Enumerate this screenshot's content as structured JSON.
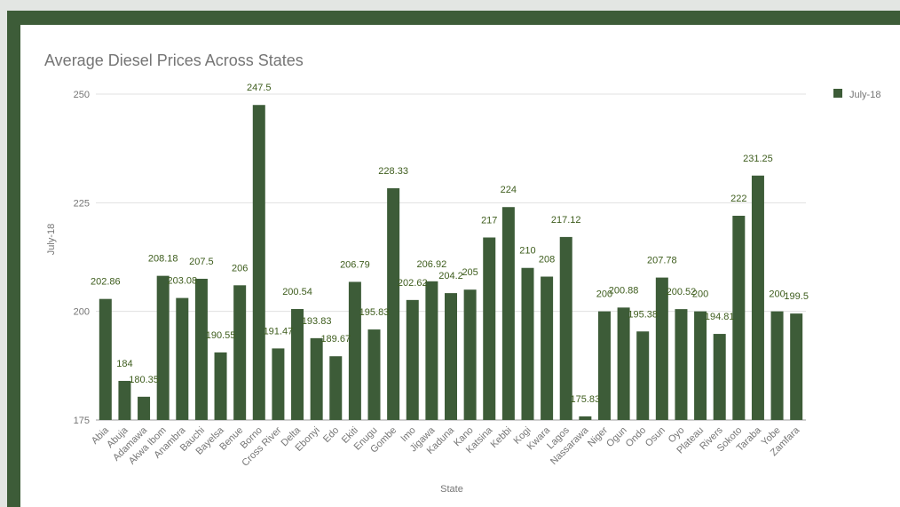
{
  "chart_data": {
    "type": "bar",
    "title": "Average Diesel Prices Across States",
    "xlabel": "State",
    "ylabel": "July-18",
    "ylim": [
      175,
      250
    ],
    "yticks": [
      175,
      200,
      225,
      250
    ],
    "grid": true,
    "legend_position": "right",
    "bar_color": "#3d5c38",
    "series": [
      {
        "name": "July-18",
        "values": [
          202.86,
          184,
          180.35,
          208.18,
          203.08,
          207.5,
          190.55,
          206,
          247.5,
          191.47,
          200.54,
          193.83,
          189.67,
          206.79,
          195.83,
          228.33,
          202.62,
          206.92,
          204.2,
          205,
          217,
          224,
          210,
          208,
          217.12,
          175.83,
          200,
          200.88,
          195.38,
          207.78,
          200.52,
          200,
          194.81,
          222,
          231.25,
          200,
          199.5
        ],
        "labels": [
          "202.86",
          "184",
          "180.35",
          "208.18",
          "203.08",
          "207.5",
          "190.55",
          "206",
          "247.5",
          "191.47",
          "200.54",
          "193.83",
          "189.67",
          "206.79",
          "195.83",
          "228.33",
          "202.62",
          "206.92",
          "204.2",
          "205",
          "217",
          "224",
          "210",
          "208",
          "217.12",
          "175.83",
          "200",
          "200.88",
          "195.38",
          "207.78",
          "200.52",
          "200",
          "194.81",
          "222",
          "231.25",
          "200",
          "199.5"
        ]
      }
    ],
    "categories": [
      "Abia",
      "Abuja",
      "Adamawa",
      "Akwa Ibom",
      "Anambra",
      "Bauchi",
      "Bayelsa",
      "Benue",
      "Borno",
      "Cross River",
      "Delta",
      "Ebonyi",
      "Edo",
      "Ekiti",
      "Enugu",
      "Gombe",
      "Imo",
      "Jigawa",
      "Kaduna",
      "Kano",
      "Katsina",
      "Kebbi",
      "Kogi",
      "Kwara",
      "Lagos",
      "Nassarawa",
      "Niger",
      "Ogun",
      "Ondo",
      "Osun",
      "Oyo",
      "Plateau",
      "Rivers",
      "Sokoto",
      "Taraba",
      "Yobe",
      "Zamfara"
    ]
  }
}
